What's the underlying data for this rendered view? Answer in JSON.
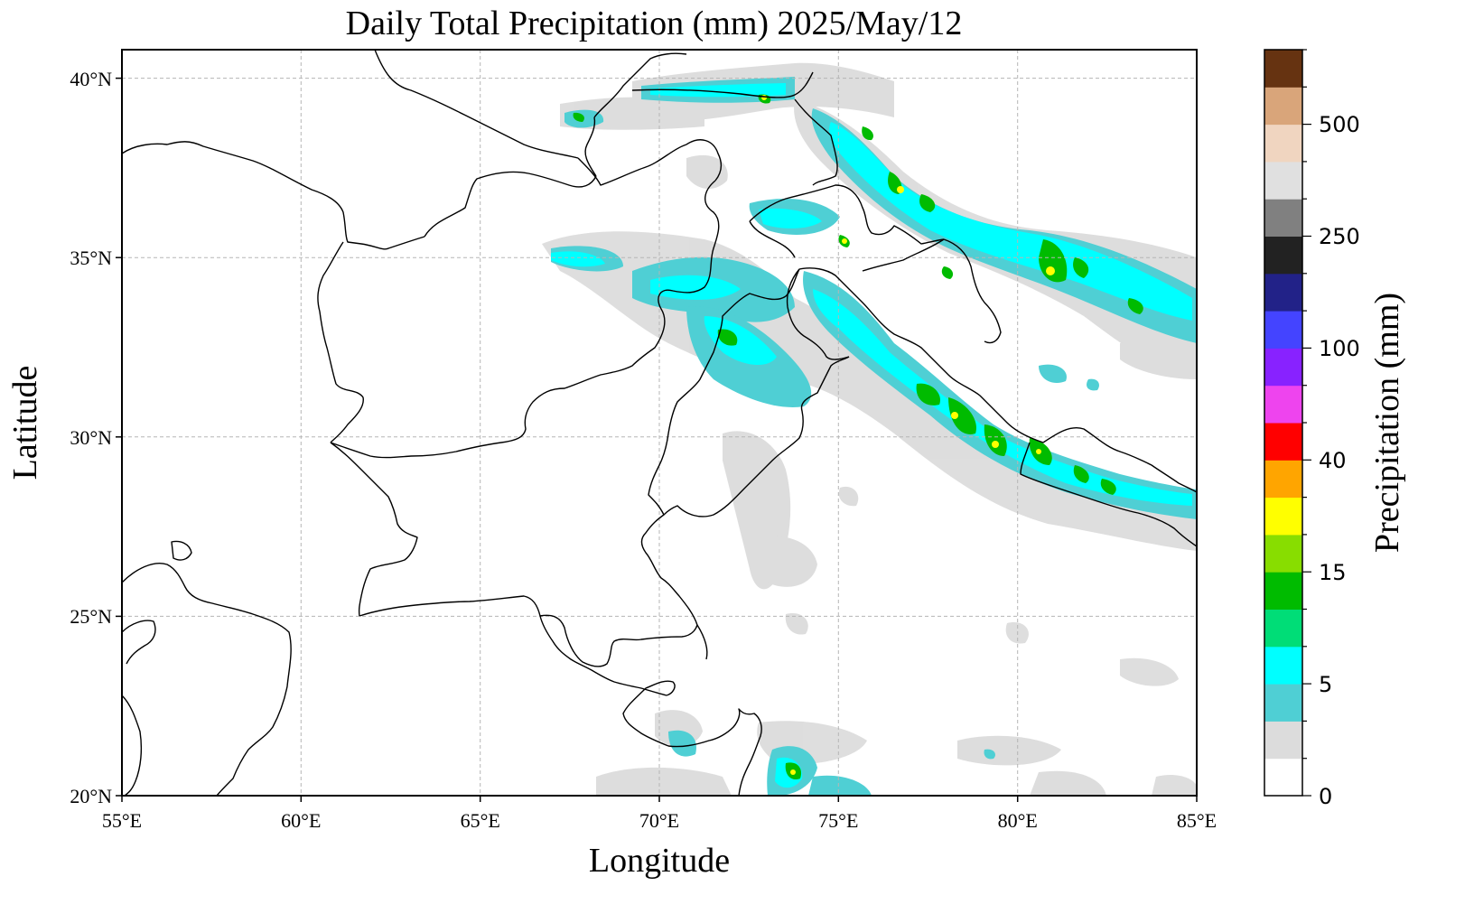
{
  "title": "Daily Total Precipitation (mm)  2025/May/12",
  "xlabel": "Longitude",
  "ylabel": "Latitude",
  "lon_ticks": [
    "55°E",
    "60°E",
    "65°E",
    "70°E",
    "75°E",
    "80°E",
    "85°E"
  ],
  "lat_ticks": [
    "20°N",
    "25°N",
    "30°N",
    "35°N",
    "40°N"
  ],
  "extent": {
    "lon": [
      55,
      85
    ],
    "lat": [
      20,
      40.8
    ]
  },
  "grid": true,
  "colorbar": {
    "label": "Precipitation (mm)",
    "tick_labels": [
      "0",
      "5",
      "15",
      "40",
      "100",
      "250",
      "500"
    ],
    "colors": [
      "#ffffff",
      "#dcdcdc",
      "#4fcfd4",
      "#00ffff",
      "#00dd77",
      "#00bb00",
      "#88dd00",
      "#ffff00",
      "#ffa500",
      "#ff0000",
      "#ee44ee",
      "#8822ff",
      "#4444ff",
      "#222288",
      "#222222",
      "#808080",
      "#e0e0e0",
      "#f0d5c0",
      "#d9a57a",
      "#663311"
    ]
  },
  "precip_colors": {
    "light": "#dcdcdc",
    "teal": "#4fcfd4",
    "cyan": "#00ffff",
    "green": "#00bb00",
    "yellow": "#ffff00"
  }
}
